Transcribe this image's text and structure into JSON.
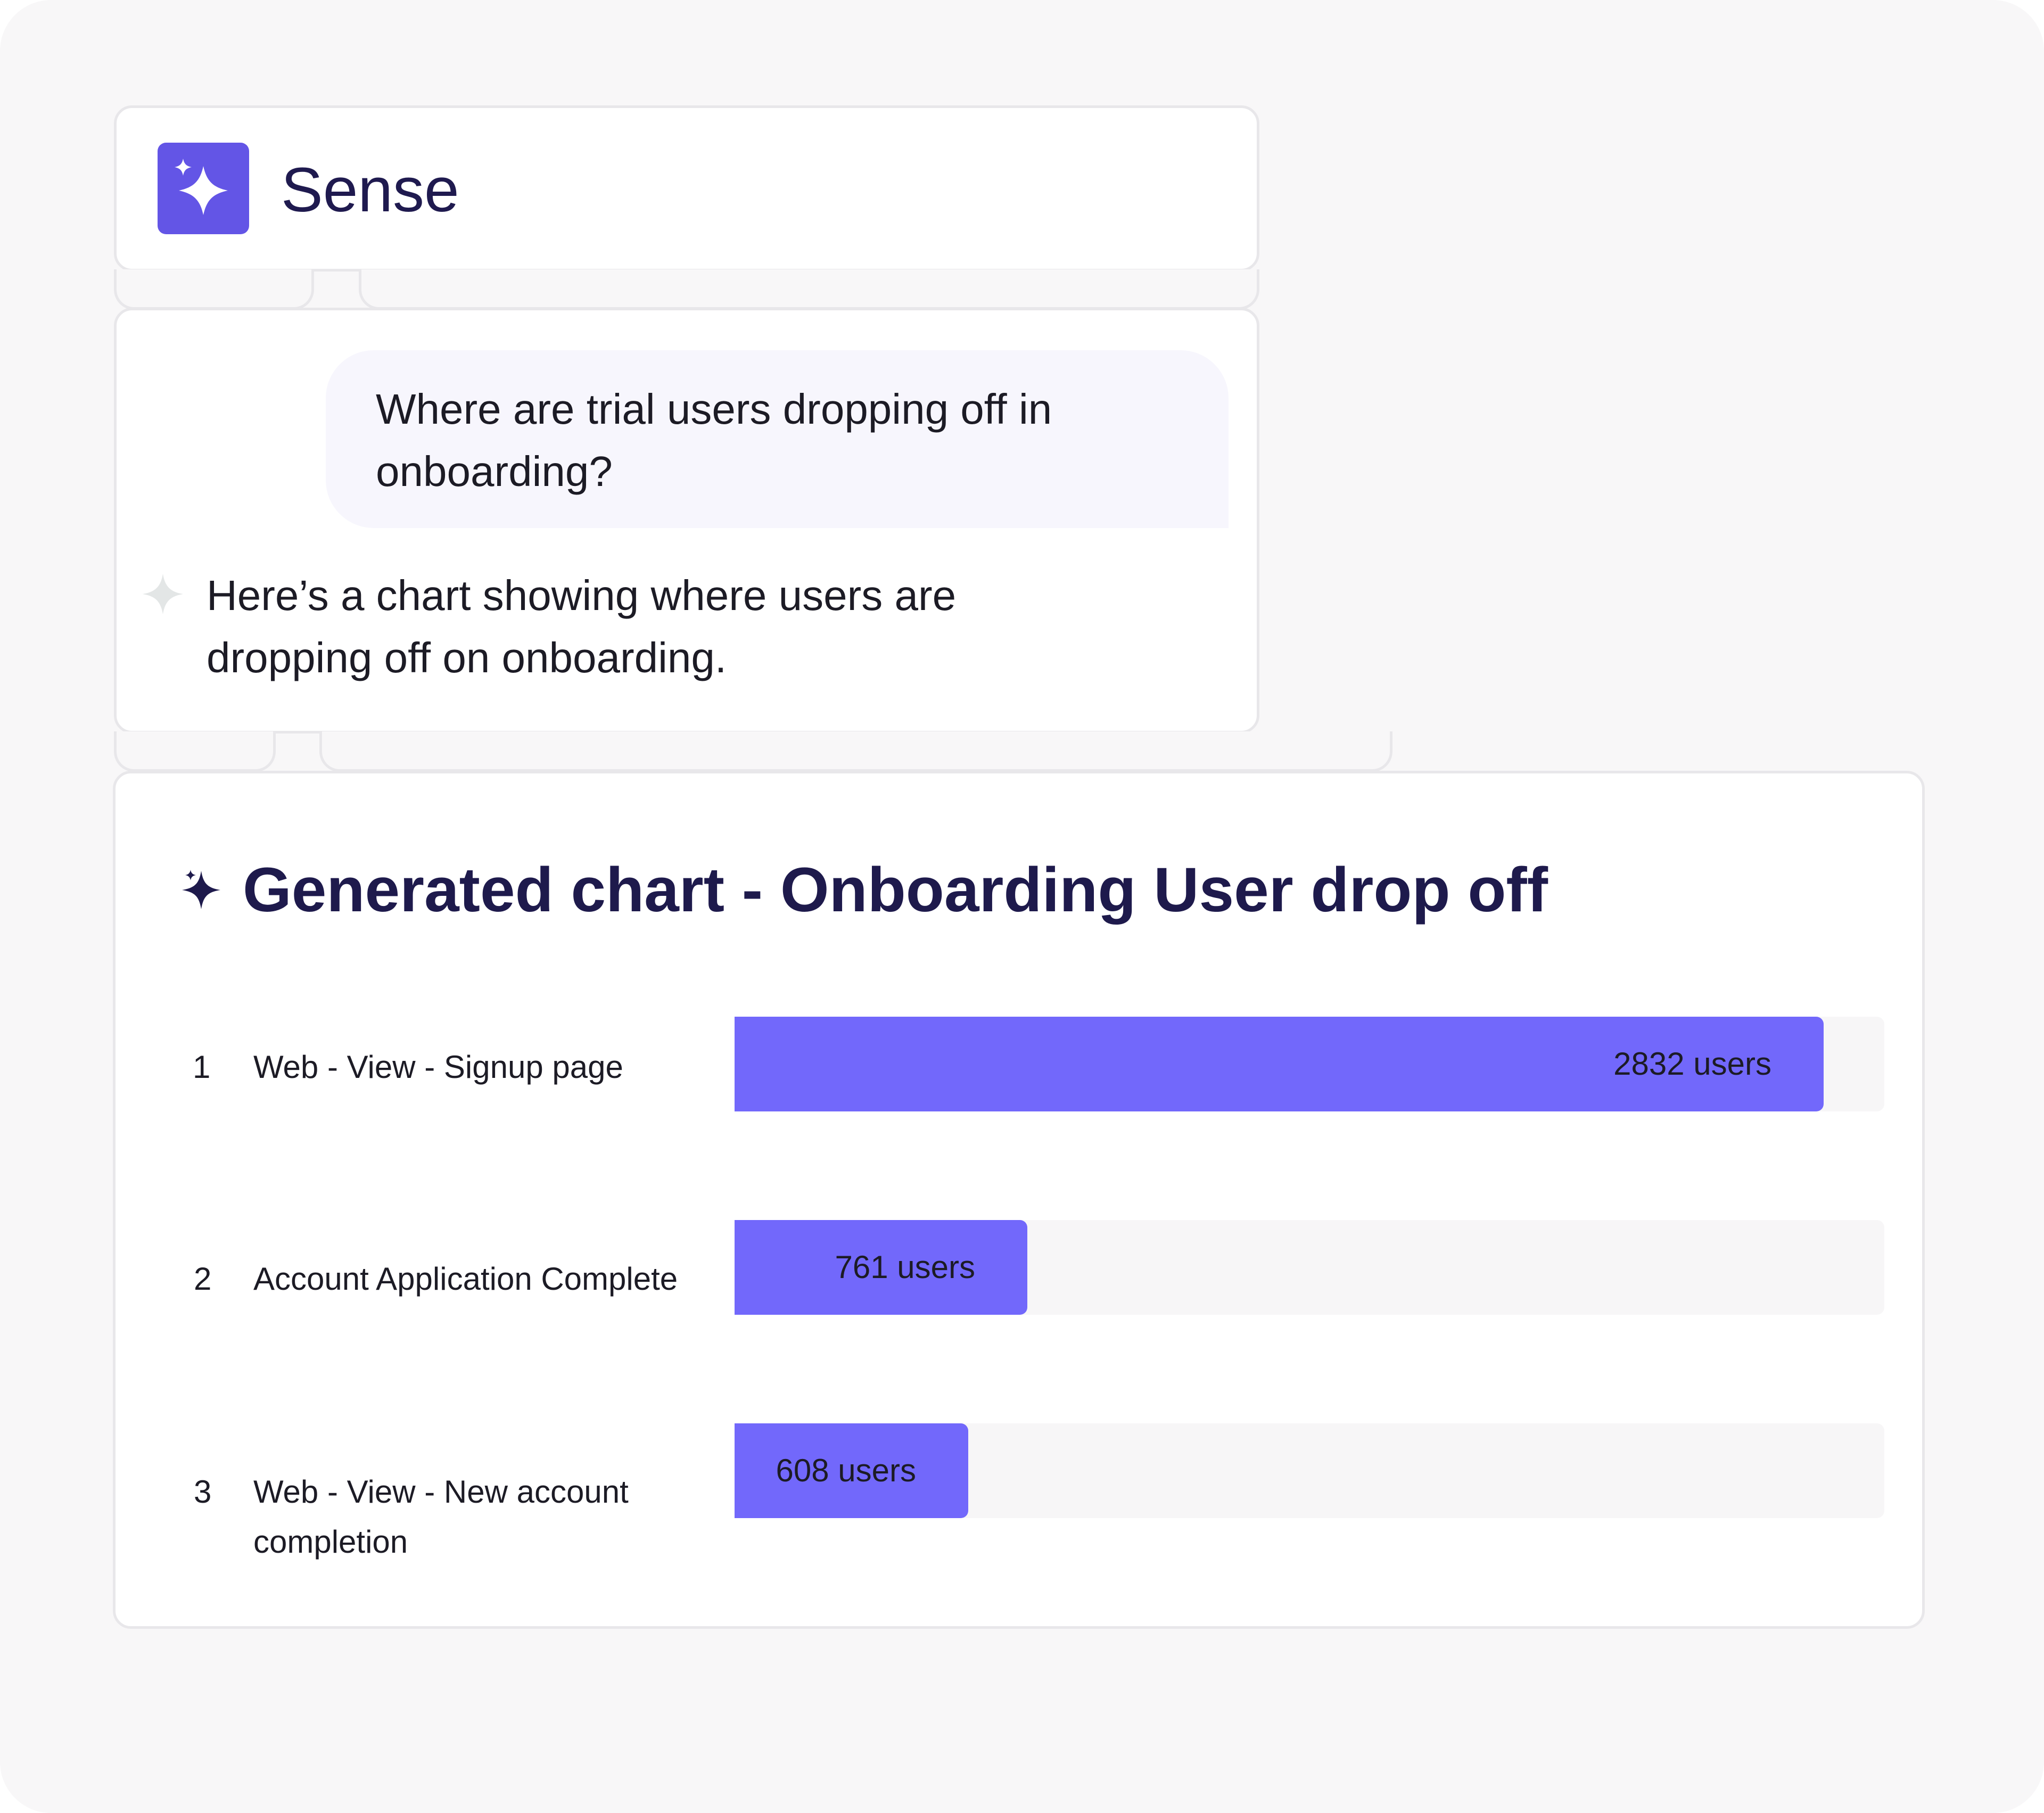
{
  "app": {
    "name": "Sense",
    "logo_icon": "sparkle-icon",
    "accent_color": "#6355e6"
  },
  "chat": {
    "user_message": "Where are trial users dropping off in onboarding?",
    "assistant_message": "Here’s a chart showing where users are dropping off on onboarding."
  },
  "chart_card": {
    "title": "Generated chart - Onboarding User drop off"
  },
  "chart_data": {
    "type": "bar",
    "orientation": "horizontal",
    "title": "Generated chart - Onboarding User drop off",
    "bar_color": "#7268fb",
    "categories": [
      "Web - View - Signup page",
      "Account Application Complete",
      "Web - View - New account completion"
    ],
    "indices": [
      "1",
      "2",
      "3"
    ],
    "values": [
      2832,
      761,
      608
    ],
    "value_labels": [
      "2832 users",
      "761 users",
      "608 users"
    ],
    "xlim": [
      0,
      2990
    ]
  }
}
